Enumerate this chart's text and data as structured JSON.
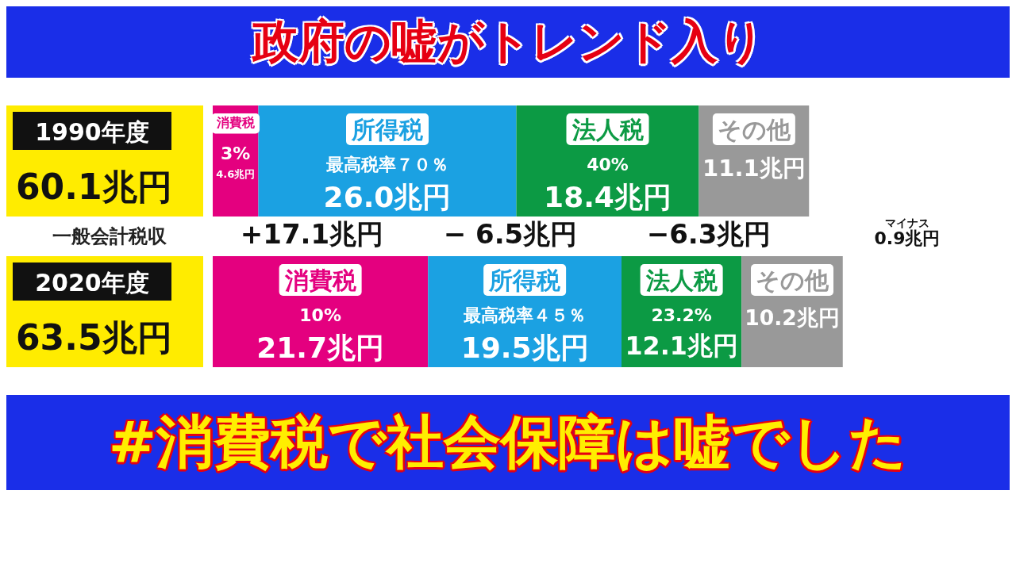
{
  "chart_data": {
    "type": "bar",
    "orientation": "horizontal",
    "stacked": true,
    "title": "政府の嘘がトレンド入り",
    "subtitle": "#消費税で社会保障は嘘でした",
    "ylabel": "一般会計税収",
    "categories": [
      "1990年度",
      "2020年度"
    ],
    "totals": [
      "60.1兆円",
      "63.5兆円"
    ],
    "series": [
      {
        "name": "消費税",
        "color": "#e4007f",
        "values": [
          4.6,
          21.7
        ],
        "value_labels": [
          "3%\n4.6兆円",
          "10%\n21.7兆円"
        ]
      },
      {
        "name": "所得税",
        "color": "#1ba1e2",
        "values": [
          26.0,
          19.5
        ],
        "value_labels": [
          "最高税率７０％\n26.0兆円",
          "最高税率４５％\n19.5兆円"
        ]
      },
      {
        "name": "法人税",
        "color": "#0c9a44",
        "values": [
          18.4,
          12.1
        ],
        "value_labels": [
          "40%\n18.4兆円",
          "23.2%\n12.1兆円"
        ]
      },
      {
        "name": "その他",
        "color": "#999999",
        "values": [
          11.1,
          10.2
        ],
        "value_labels": [
          "11.1兆円",
          "10.2兆円"
        ]
      }
    ],
    "annotations": [
      "+17.1兆円",
      "− 6.5兆円",
      "−6.3兆円",
      "マイナス\n0.9兆円"
    ]
  }
}
